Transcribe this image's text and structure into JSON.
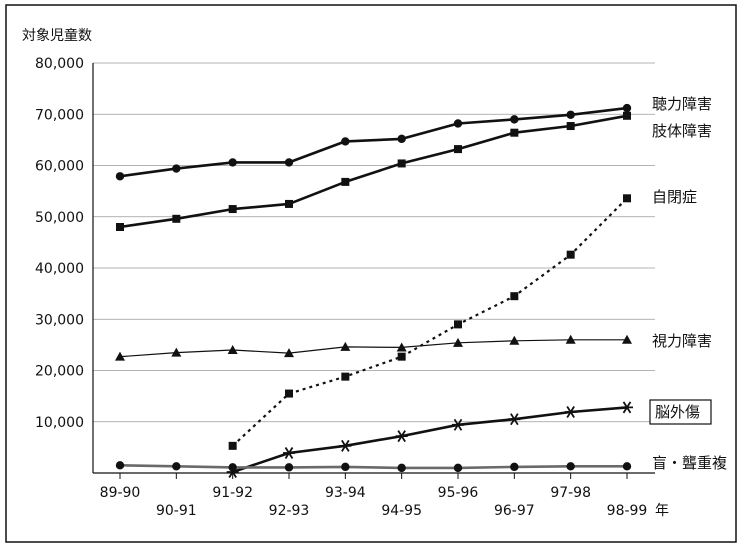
{
  "chart_data": {
    "type": "line",
    "ylabel": "対象児童数",
    "xunit": "年",
    "ylim": [
      0,
      80000
    ],
    "yticks": [
      "80,000",
      "70,000",
      "60,000",
      "50,000",
      "40,000",
      "30,000",
      "20,000",
      "10,000"
    ],
    "ytick_values": [
      80000,
      70000,
      60000,
      50000,
      40000,
      30000,
      20000,
      10000
    ],
    "grid": true,
    "categories": [
      "89-90",
      "90-91",
      "91-92",
      "92-93",
      "93-94",
      "94-95",
      "95-96",
      "96-97",
      "97-98",
      "98-99"
    ],
    "series": [
      {
        "name": "聴力障害",
        "marker": "circle",
        "line": "solid-bold",
        "values": [
          57900,
          59400,
          60600,
          60600,
          64700,
          65200,
          68200,
          69000,
          69900,
          71200
        ]
      },
      {
        "name": "肢体障害",
        "marker": "square",
        "line": "solid-bold",
        "values": [
          48000,
          49600,
          51500,
          52500,
          56800,
          60400,
          63200,
          66400,
          67700,
          69700
        ]
      },
      {
        "name": "自閉症",
        "marker": "square",
        "line": "dotted",
        "values": [
          null,
          null,
          5300,
          15500,
          18800,
          22700,
          29000,
          34500,
          42600,
          53600
        ]
      },
      {
        "name": "視力障害",
        "marker": "triangle",
        "line": "solid-thin",
        "values": [
          22700,
          23500,
          24000,
          23400,
          24600,
          24500,
          25400,
          25800,
          26000,
          26000
        ]
      },
      {
        "name": "脳外傷",
        "marker": "asterisk",
        "line": "solid-bold",
        "boxed": true,
        "values": [
          null,
          null,
          200,
          3900,
          5300,
          7200,
          9400,
          10500,
          11900,
          12800
        ]
      },
      {
        "name": "盲・聾重複",
        "marker": "circle",
        "line": "solid-bold-gray",
        "values": [
          1500,
          1300,
          1100,
          1100,
          1200,
          1000,
          1000,
          1200,
          1300,
          1300
        ]
      }
    ]
  }
}
